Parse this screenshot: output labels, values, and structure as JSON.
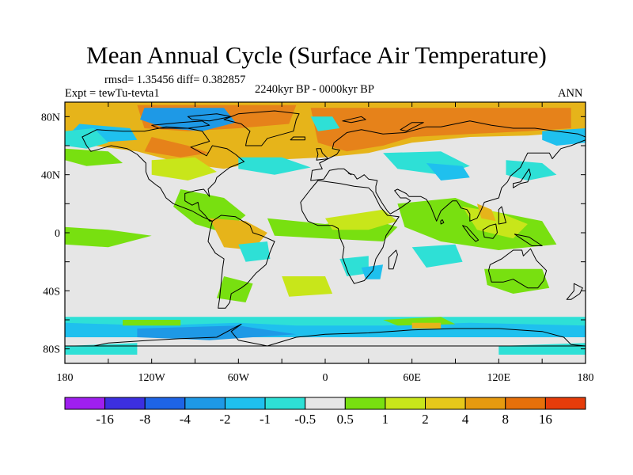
{
  "title": "Mean Annual Cycle (Surface Air Temperature)",
  "stats": "rmsd= 1.35456 diff= 0.382857",
  "experiment": "Expt = tewTu-tevta1",
  "period": "2240kyr BP - 0000kyr BP",
  "season": "ANN",
  "lat_labels": [
    "80N",
    "40N",
    "0",
    "40S",
    "80S"
  ],
  "lon_labels": [
    "180",
    "120W",
    "60W",
    "0",
    "60E",
    "120E",
    "180"
  ],
  "colorbar": {
    "colors": [
      "#9f1fef",
      "#3c2fe0",
      "#1e64e6",
      "#1e99e6",
      "#1fc0ee",
      "#2ee0d6",
      "#e6e6e6",
      "#78e010",
      "#c8e61a",
      "#e6c81a",
      "#e69a0f",
      "#e6700a",
      "#e63c0a"
    ],
    "labels": [
      "-16",
      "-8",
      "-4",
      "-2",
      "-1",
      "-0.5",
      "0.5",
      "1",
      "2",
      "4",
      "8",
      "16"
    ]
  },
  "colors": {
    "neutral": "#e6e6e6",
    "orange": "#e6821a",
    "gold": "#e6b41a",
    "yellow": "#c8e61a",
    "green": "#78e010",
    "cyan": "#2ee0d6",
    "lightblue": "#1fc0ee",
    "blue": "#1e99e6",
    "coast": "#000000"
  }
}
